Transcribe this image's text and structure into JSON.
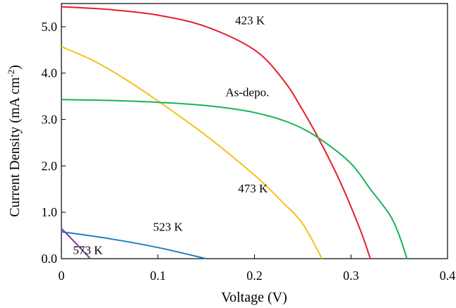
{
  "chart_data": {
    "type": "line",
    "title": "",
    "xlabel": "Voltage (V)",
    "ylabel_main": "Current Density  (mA cm",
    "ylabel_sup": "-2",
    "ylabel_close": ")",
    "xlim": [
      0,
      0.4
    ],
    "ylim": [
      0,
      5.5
    ],
    "xticks": [
      "0",
      "0.1",
      "0.2",
      "0.3",
      "0.4"
    ],
    "yticks": [
      "0.0",
      "1.0",
      "2.0",
      "3.0",
      "4.0",
      "5.0"
    ],
    "grid": false,
    "legend": "none",
    "series": [
      {
        "name": "423 K",
        "color": "#e3202a",
        "label_at": [
          0.18,
          5.05
        ],
        "points": [
          [
            0,
            5.43
          ],
          [
            0.05,
            5.37
          ],
          [
            0.1,
            5.25
          ],
          [
            0.15,
            5.0
          ],
          [
            0.2,
            4.5
          ],
          [
            0.23,
            3.85
          ],
          [
            0.25,
            3.2
          ],
          [
            0.27,
            2.45
          ],
          [
            0.29,
            1.6
          ],
          [
            0.31,
            0.6
          ],
          [
            0.32,
            0.0
          ]
        ]
      },
      {
        "name": "473 K",
        "color": "#f2c21b",
        "label_at": [
          0.183,
          1.43
        ],
        "points": [
          [
            0,
            4.57
          ],
          [
            0.03,
            4.3
          ],
          [
            0.06,
            3.95
          ],
          [
            0.1,
            3.4
          ],
          [
            0.15,
            2.65
          ],
          [
            0.2,
            1.8
          ],
          [
            0.23,
            1.2
          ],
          [
            0.25,
            0.75
          ],
          [
            0.27,
            0.0
          ]
        ]
      },
      {
        "name": "As-depo.",
        "color": "#17b35a",
        "label_at": [
          0.17,
          3.5
        ],
        "points": [
          [
            0,
            3.43
          ],
          [
            0.05,
            3.41
          ],
          [
            0.1,
            3.37
          ],
          [
            0.15,
            3.3
          ],
          [
            0.2,
            3.15
          ],
          [
            0.24,
            2.9
          ],
          [
            0.27,
            2.55
          ],
          [
            0.3,
            2.05
          ],
          [
            0.32,
            1.5
          ],
          [
            0.34,
            0.95
          ],
          [
            0.35,
            0.5
          ],
          [
            0.358,
            0.0
          ]
        ]
      },
      {
        "name": "523 K",
        "color": "#1f7fc0",
        "label_at": [
          0.095,
          0.6
        ],
        "points": [
          [
            0,
            0.58
          ],
          [
            0.05,
            0.43
          ],
          [
            0.1,
            0.24
          ],
          [
            0.15,
            0.0
          ]
        ]
      },
      {
        "name": "573 K",
        "color": "#7a3fa0",
        "label_at": [
          0.012,
          0.1
        ],
        "points": [
          [
            0,
            0.65
          ],
          [
            0.015,
            0.33
          ],
          [
            0.03,
            0.0
          ]
        ]
      }
    ]
  }
}
